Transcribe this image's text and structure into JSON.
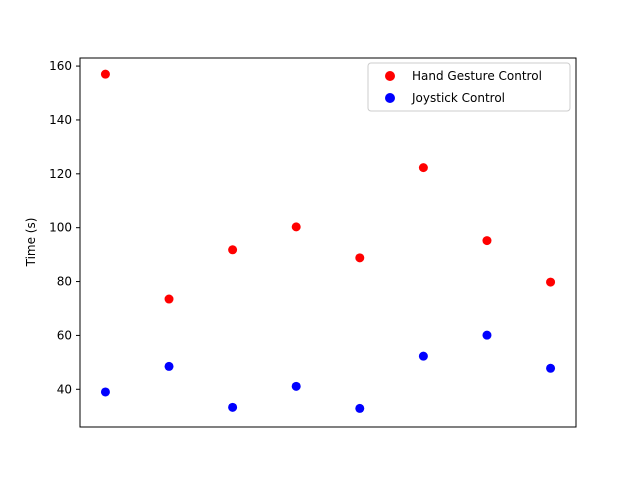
{
  "chart_data": {
    "type": "scatter",
    "title": "",
    "xlabel": "",
    "ylabel": "Time (s)",
    "x": [
      1,
      2,
      3,
      4,
      5,
      6,
      7,
      8
    ],
    "xlim": [
      0.6,
      8.4
    ],
    "ylim": [
      26,
      163
    ],
    "yticks": [
      40,
      60,
      80,
      100,
      120,
      140,
      160
    ],
    "show_xticks": false,
    "grid": false,
    "legend_position": "top-right",
    "series": [
      {
        "name": "Hand Gesture Control",
        "color": "#ff0000",
        "values": [
          157,
          73.5,
          91.8,
          100.3,
          88.8,
          122.3,
          95.2,
          79.8
        ]
      },
      {
        "name": "Joystick Control",
        "color": "#0000ff",
        "values": [
          39,
          48.5,
          33.3,
          41.1,
          32.9,
          52.3,
          60.1,
          47.8
        ]
      }
    ]
  }
}
